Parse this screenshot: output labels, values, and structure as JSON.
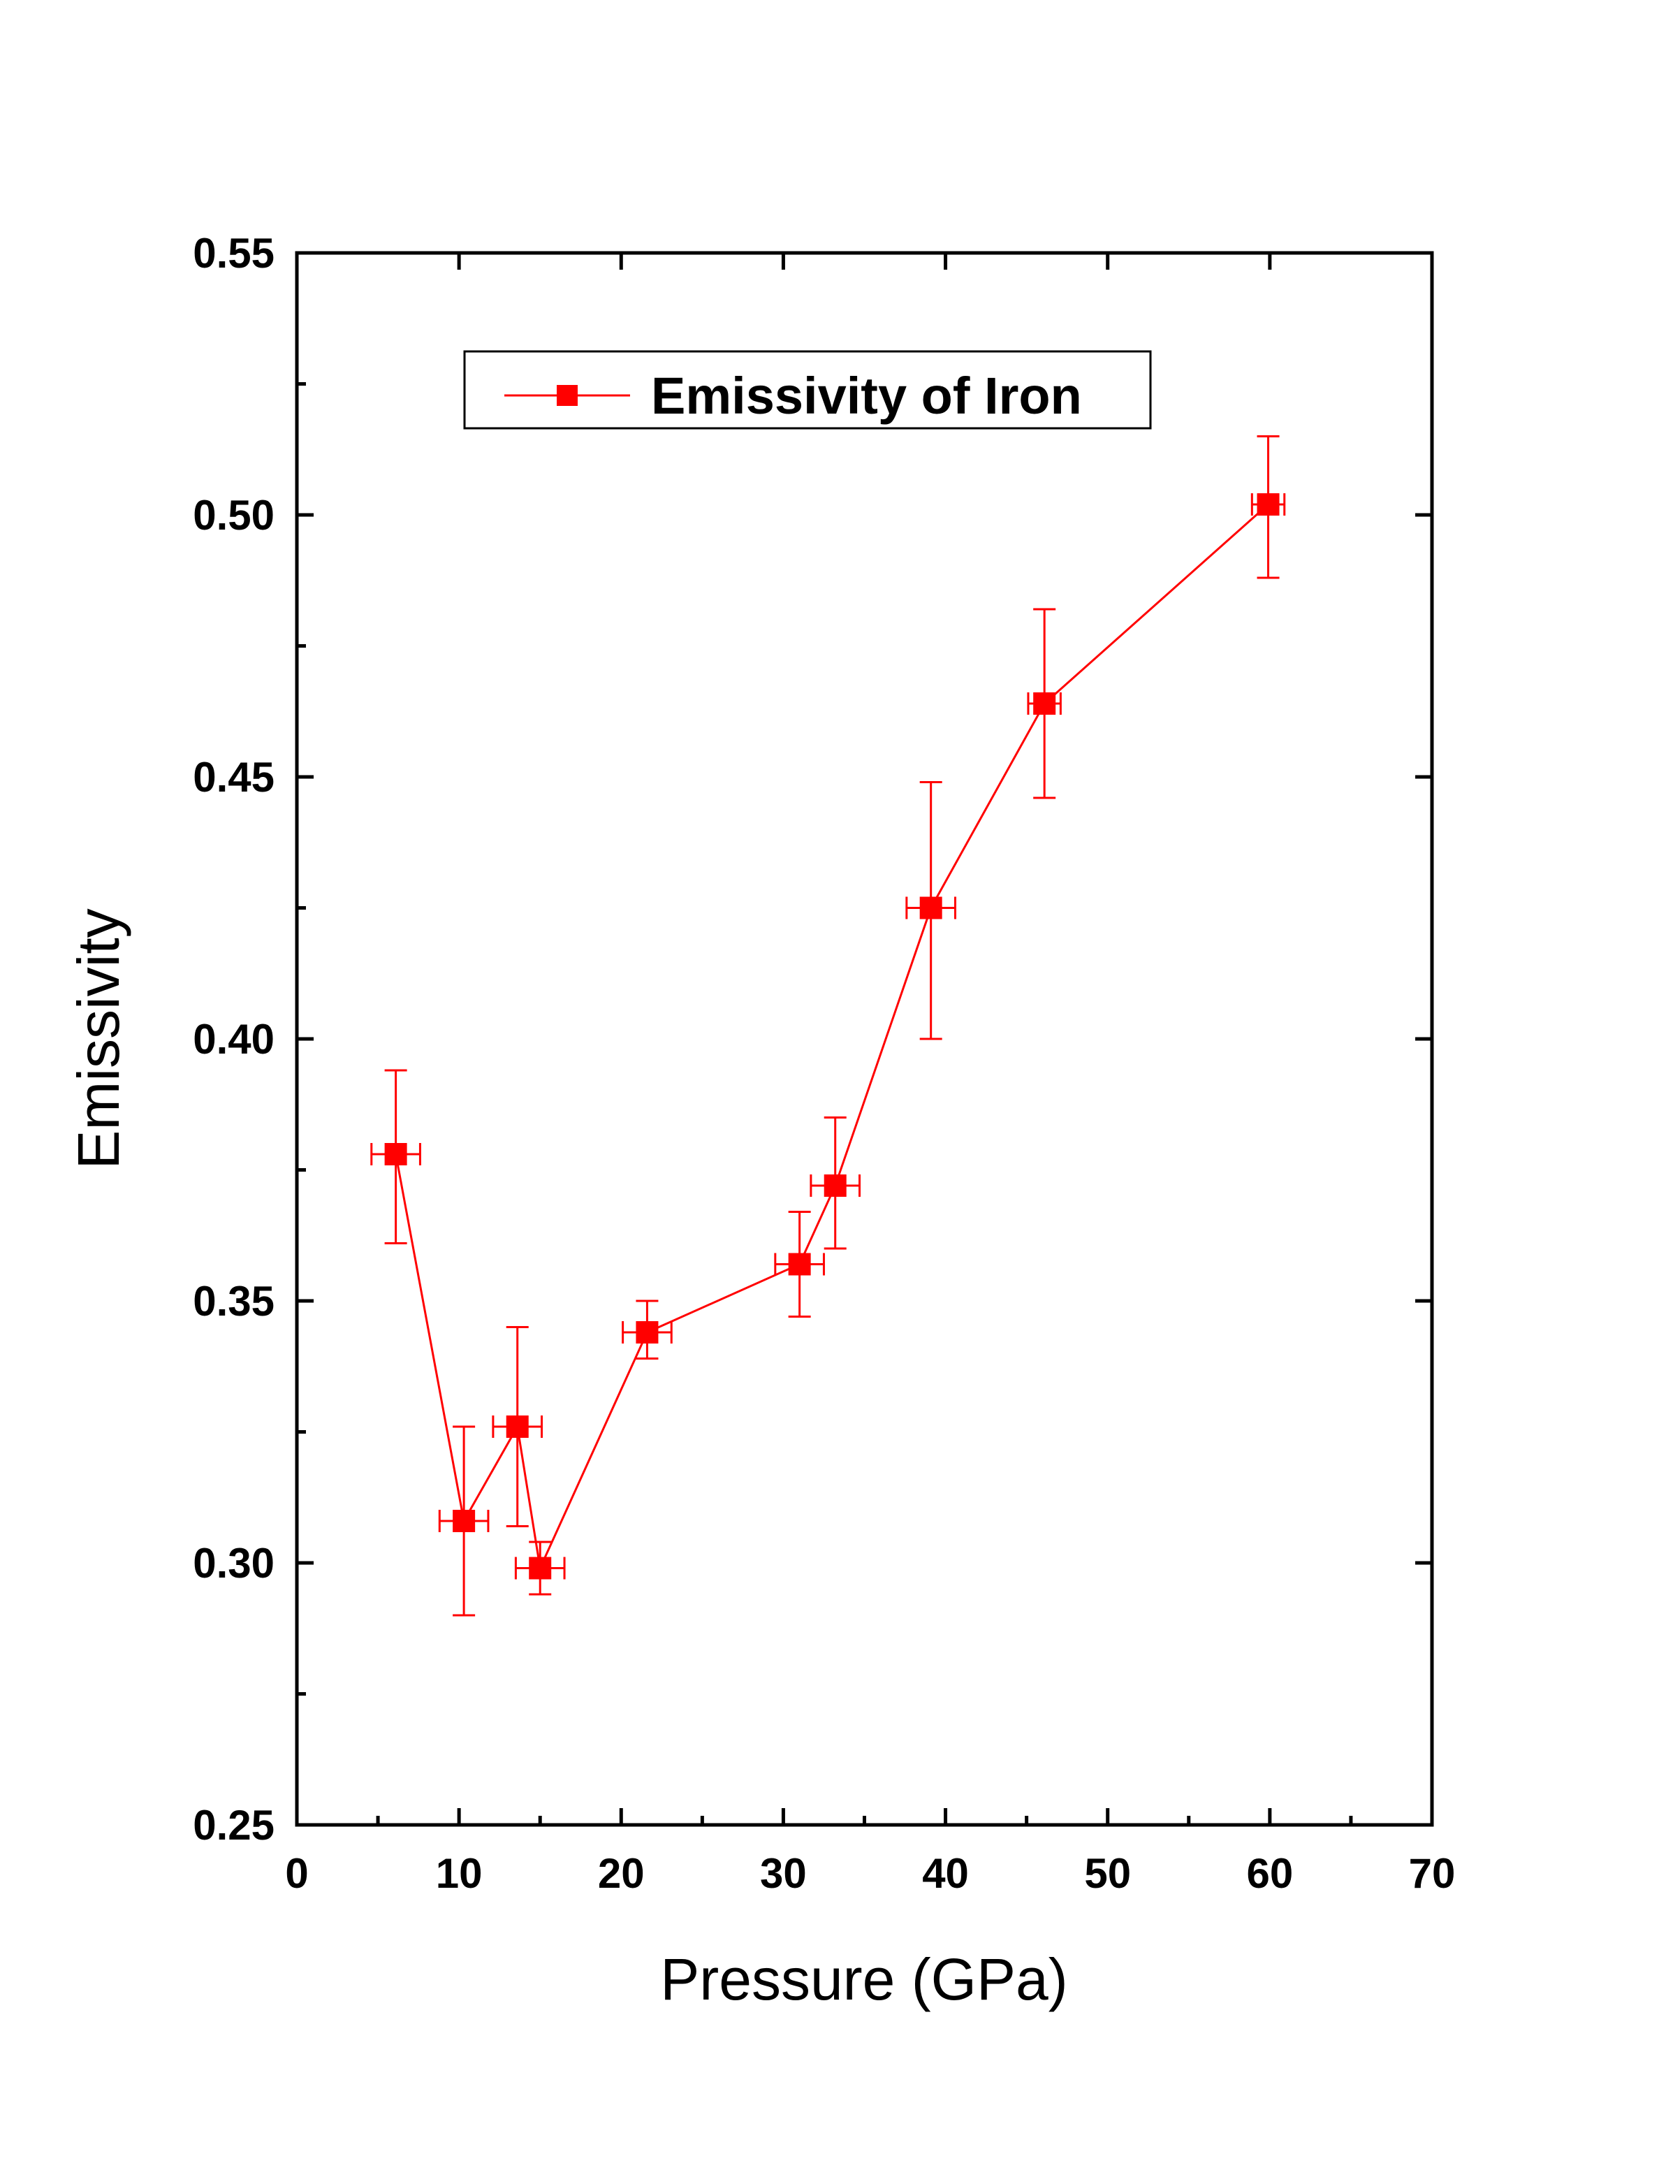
{
  "chart_data": {
    "type": "line",
    "title": "",
    "xlabel": "Pressure (GPa)",
    "ylabel": "Emissivity",
    "xlim": [
      0,
      70
    ],
    "ylim": [
      0.25,
      0.55
    ],
    "xticks": [
      0,
      10,
      20,
      30,
      40,
      50,
      60,
      70
    ],
    "xtick_labels": [
      "0",
      "10",
      "20",
      "30",
      "40",
      "50",
      "60",
      "70"
    ],
    "yticks": [
      0.25,
      0.3,
      0.35,
      0.4,
      0.45,
      0.5,
      0.55
    ],
    "ytick_labels": [
      "0.25",
      "0.30",
      "0.35",
      "0.40",
      "0.45",
      "0.50",
      "0.55"
    ],
    "grid": false,
    "legend_position": "top-center",
    "color": "#ff0000",
    "series": [
      {
        "name": "Emissivity of Iron",
        "marker": "square",
        "points": [
          {
            "x": 6.1,
            "y": 0.378,
            "yerr_low": 0.361,
            "yerr_high": 0.394,
            "xerr": 1.5
          },
          {
            "x": 10.3,
            "y": 0.308,
            "yerr_low": 0.29,
            "yerr_high": 0.326,
            "xerr": 1.5
          },
          {
            "x": 13.6,
            "y": 0.326,
            "yerr_low": 0.307,
            "yerr_high": 0.345,
            "xerr": 1.5
          },
          {
            "x": 15.0,
            "y": 0.299,
            "yerr_low": 0.294,
            "yerr_high": 0.304,
            "xerr": 1.5
          },
          {
            "x": 21.6,
            "y": 0.344,
            "yerr_low": 0.339,
            "yerr_high": 0.35,
            "xerr": 1.5
          },
          {
            "x": 31.0,
            "y": 0.357,
            "yerr_low": 0.347,
            "yerr_high": 0.367,
            "xerr": 1.5
          },
          {
            "x": 33.2,
            "y": 0.372,
            "yerr_low": 0.36,
            "yerr_high": 0.385,
            "xerr": 1.5
          },
          {
            "x": 39.1,
            "y": 0.425,
            "yerr_low": 0.4,
            "yerr_high": 0.449,
            "xerr": 1.5
          },
          {
            "x": 46.1,
            "y": 0.464,
            "yerr_low": 0.446,
            "yerr_high": 0.482,
            "xerr": 1.0
          },
          {
            "x": 59.9,
            "y": 0.502,
            "yerr_low": 0.488,
            "yerr_high": 0.515,
            "xerr": 1.0
          }
        ]
      }
    ]
  }
}
